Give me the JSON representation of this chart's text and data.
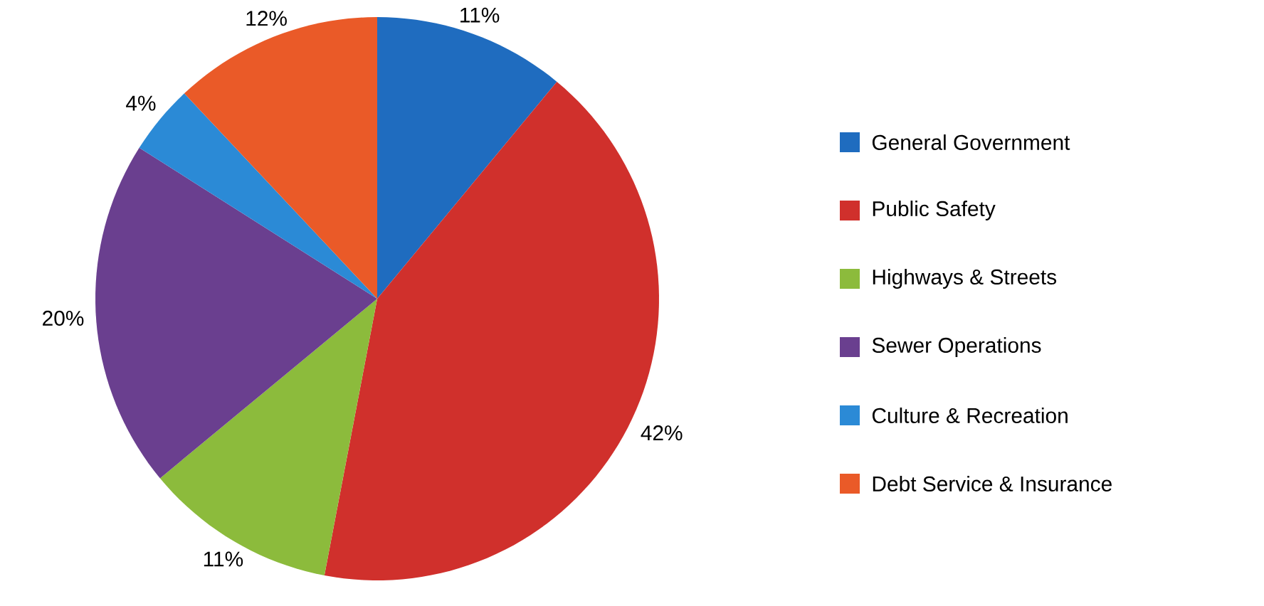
{
  "chart_data": {
    "type": "pie",
    "categories": [
      "General Government",
      "Public Safety",
      "Highways & Streets",
      "Sewer Operations",
      "Culture & Recreation",
      "Debt Service & Insurance"
    ],
    "values": [
      11,
      42,
      11,
      20,
      4,
      12
    ],
    "value_labels": [
      "11%",
      "42%",
      "11%",
      "20%",
      "4%",
      "12%"
    ],
    "colors": [
      "#1f6cbf",
      "#d0302c",
      "#8cbb3c",
      "#6a3f8f",
      "#2b8ad6",
      "#ea5a28"
    ],
    "legend": "right"
  }
}
